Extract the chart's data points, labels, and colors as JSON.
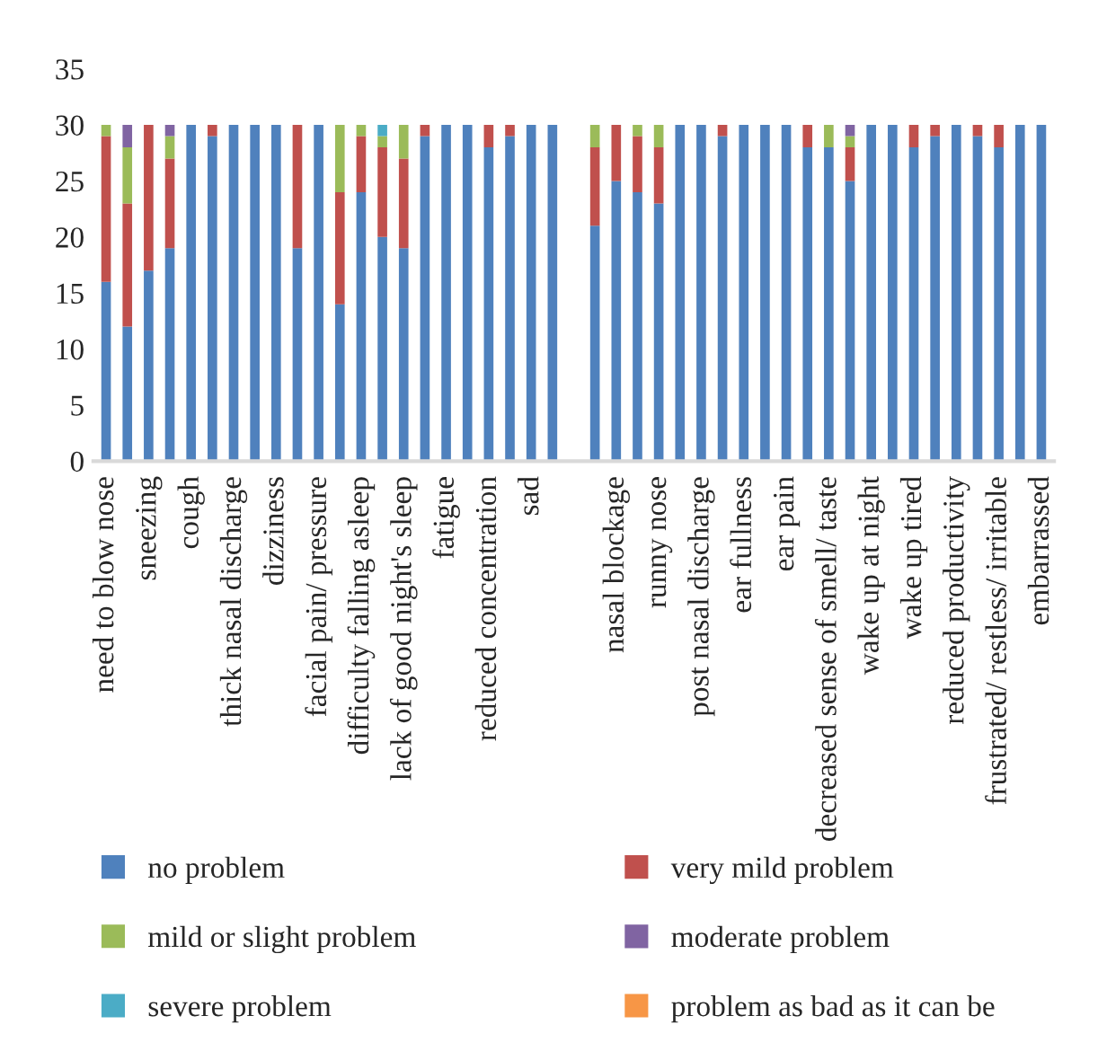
{
  "chart_data": {
    "type": "bar",
    "stacked": true,
    "categories": [
      "need to blow nose",
      null,
      "sneezing",
      null,
      "cough",
      null,
      "thick nasal discharge",
      null,
      "dizziness",
      null,
      "facial pain/ pressure",
      null,
      "difficulty falling asleep",
      null,
      "lack of good night's sleep",
      null,
      "fatigue",
      null,
      "reduced concentration",
      null,
      "sad",
      null,
      null,
      null,
      "nasal blockage",
      null,
      "runny nose",
      null,
      "post nasal discharge",
      null,
      "ear fullness",
      null,
      "ear pain",
      null,
      "decreased sense of smell/ taste",
      null,
      "wake up at night",
      null,
      "wake up tired",
      null,
      "reduced productivity",
      null,
      "frustrated/ restless/ irritable",
      null,
      "embarrassed"
    ],
    "series": [
      {
        "name": "no problem",
        "color": "#4f81bd",
        "values": [
          16,
          12,
          17,
          19,
          30,
          29,
          30,
          30,
          30,
          19,
          30,
          14,
          24,
          20,
          19,
          29,
          30,
          30,
          28,
          29,
          30,
          30,
          null,
          21,
          25,
          24,
          23,
          30,
          30,
          29,
          30,
          30,
          30,
          28,
          28,
          25,
          30,
          30,
          28,
          29,
          30,
          29,
          28,
          30,
          30
        ]
      },
      {
        "name": "very mild problem",
        "color": "#c0504d",
        "values": [
          13,
          11,
          13,
          8,
          0,
          1,
          0,
          0,
          0,
          11,
          0,
          10,
          5,
          8,
          8,
          1,
          0,
          0,
          2,
          1,
          0,
          0,
          null,
          7,
          5,
          5,
          5,
          0,
          0,
          1,
          0,
          0,
          0,
          2,
          0,
          3,
          0,
          0,
          2,
          1,
          0,
          1,
          2,
          0,
          0
        ]
      },
      {
        "name": "mild or slight problem",
        "color": "#9bbb59",
        "values": [
          1,
          5,
          0,
          2,
          0,
          0,
          0,
          0,
          0,
          0,
          0,
          6,
          1,
          1,
          3,
          0,
          0,
          0,
          0,
          0,
          0,
          0,
          null,
          2,
          0,
          1,
          2,
          0,
          0,
          0,
          0,
          0,
          0,
          0,
          2,
          1,
          0,
          0,
          0,
          0,
          0,
          0,
          0,
          0,
          0
        ]
      },
      {
        "name": "moderate problem",
        "color": "#8064a2",
        "values": [
          0,
          2,
          0,
          1,
          0,
          0,
          0,
          0,
          0,
          0,
          0,
          0,
          0,
          0,
          0,
          0,
          0,
          0,
          0,
          0,
          0,
          0,
          null,
          0,
          0,
          0,
          0,
          0,
          0,
          0,
          0,
          0,
          0,
          0,
          0,
          1,
          0,
          0,
          0,
          0,
          0,
          0,
          0,
          0,
          0
        ]
      },
      {
        "name": "severe problem",
        "color": "#4bacc6",
        "values": [
          0,
          0,
          0,
          0,
          0,
          0,
          0,
          0,
          0,
          0,
          0,
          0,
          0,
          1,
          0,
          0,
          0,
          0,
          0,
          0,
          0,
          0,
          null,
          0,
          0,
          0,
          0,
          0,
          0,
          0,
          0,
          0,
          0,
          0,
          0,
          0,
          0,
          0,
          0,
          0,
          0,
          0,
          0,
          0,
          0
        ]
      },
      {
        "name": "problem as bad as it can be",
        "color": "#f79646",
        "values": [
          0,
          0,
          0,
          0,
          0,
          0,
          0,
          0,
          0,
          0,
          0,
          0,
          0,
          0,
          0,
          0,
          0,
          0,
          0,
          0,
          0,
          0,
          null,
          0,
          0,
          0,
          0,
          0,
          0,
          0,
          0,
          0,
          0,
          0,
          0,
          0,
          0,
          0,
          0,
          0,
          0,
          0,
          0,
          0,
          0
        ]
      }
    ],
    "ylim": [
      0,
      35
    ],
    "yticks": [
      0,
      5,
      10,
      15,
      20,
      25,
      30,
      35
    ],
    "grid": false,
    "legend": "bottom"
  }
}
